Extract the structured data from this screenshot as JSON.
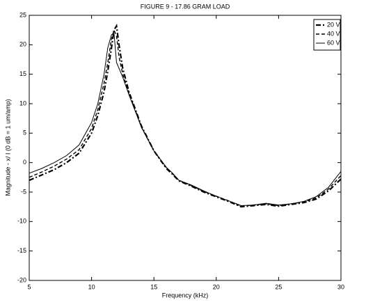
{
  "chart_data": {
    "type": "line",
    "title": "FIGURE 9 - 17.86 GRAM LOAD",
    "xlabel": "Frequency (kHz)",
    "ylabel": "Magnitude - x/ I (0 dB = 1 um/amp)",
    "x": [
      5,
      6,
      7,
      8,
      9,
      10,
      10.5,
      11,
      11.3,
      11.6,
      11.8,
      12,
      12.2,
      12.5,
      13,
      14,
      15,
      16,
      16.5,
      17,
      18,
      19,
      20,
      21,
      22,
      23,
      24,
      25,
      26,
      27,
      28,
      29,
      30
    ],
    "series": [
      {
        "name": "20 V",
        "color": "#000000",
        "dash": "7,3,2,3",
        "width": 2.2,
        "values": [
          -3.0,
          -2.1,
          -1.2,
          0.0,
          1.6,
          5.0,
          8.0,
          12.0,
          15.5,
          19.5,
          22.5,
          23.2,
          20.0,
          16.0,
          12.0,
          6.2,
          2.0,
          -1.0,
          -2.0,
          -3.1,
          -4.0,
          -5.0,
          -5.8,
          -6.6,
          -7.5,
          -7.3,
          -7.1,
          -7.4,
          -7.1,
          -6.8,
          -6.2,
          -4.8,
          -2.8
        ]
      },
      {
        "name": "40 V",
        "color": "#000000",
        "dash": "5,3",
        "width": 1.4,
        "values": [
          -2.5,
          -1.6,
          -0.6,
          0.6,
          2.2,
          5.8,
          9.0,
          13.5,
          17.0,
          21.0,
          22.5,
          21.5,
          18.0,
          15.0,
          11.8,
          6.0,
          2.0,
          -0.9,
          -1.9,
          -3.0,
          -3.9,
          -4.9,
          -5.7,
          -6.5,
          -7.4,
          -7.2,
          -7.0,
          -7.3,
          -7.0,
          -6.7,
          -6.0,
          -4.5,
          -2.2
        ]
      },
      {
        "name": "60 V",
        "color": "#000000",
        "dash": "none",
        "width": 1,
        "values": [
          -1.8,
          -1.0,
          0.0,
          1.2,
          3.0,
          6.8,
          10.0,
          15.0,
          19.5,
          21.7,
          22.0,
          17.0,
          16.0,
          14.5,
          11.5,
          6.0,
          2.0,
          -0.8,
          -1.8,
          -3.0,
          -3.8,
          -4.8,
          -5.7,
          -6.5,
          -7.3,
          -7.2,
          -6.9,
          -7.2,
          -7.0,
          -6.6,
          -5.8,
          -4.2,
          -1.5
        ]
      }
    ],
    "xlim": [
      5,
      30
    ],
    "xticks": [
      5,
      10,
      15,
      20,
      25,
      30
    ],
    "ylim": [
      -20,
      25
    ],
    "yticks": [
      -20,
      -15,
      -10,
      -5,
      0,
      5,
      10,
      15,
      20,
      25
    ],
    "grid": false,
    "legend": "upper right"
  }
}
